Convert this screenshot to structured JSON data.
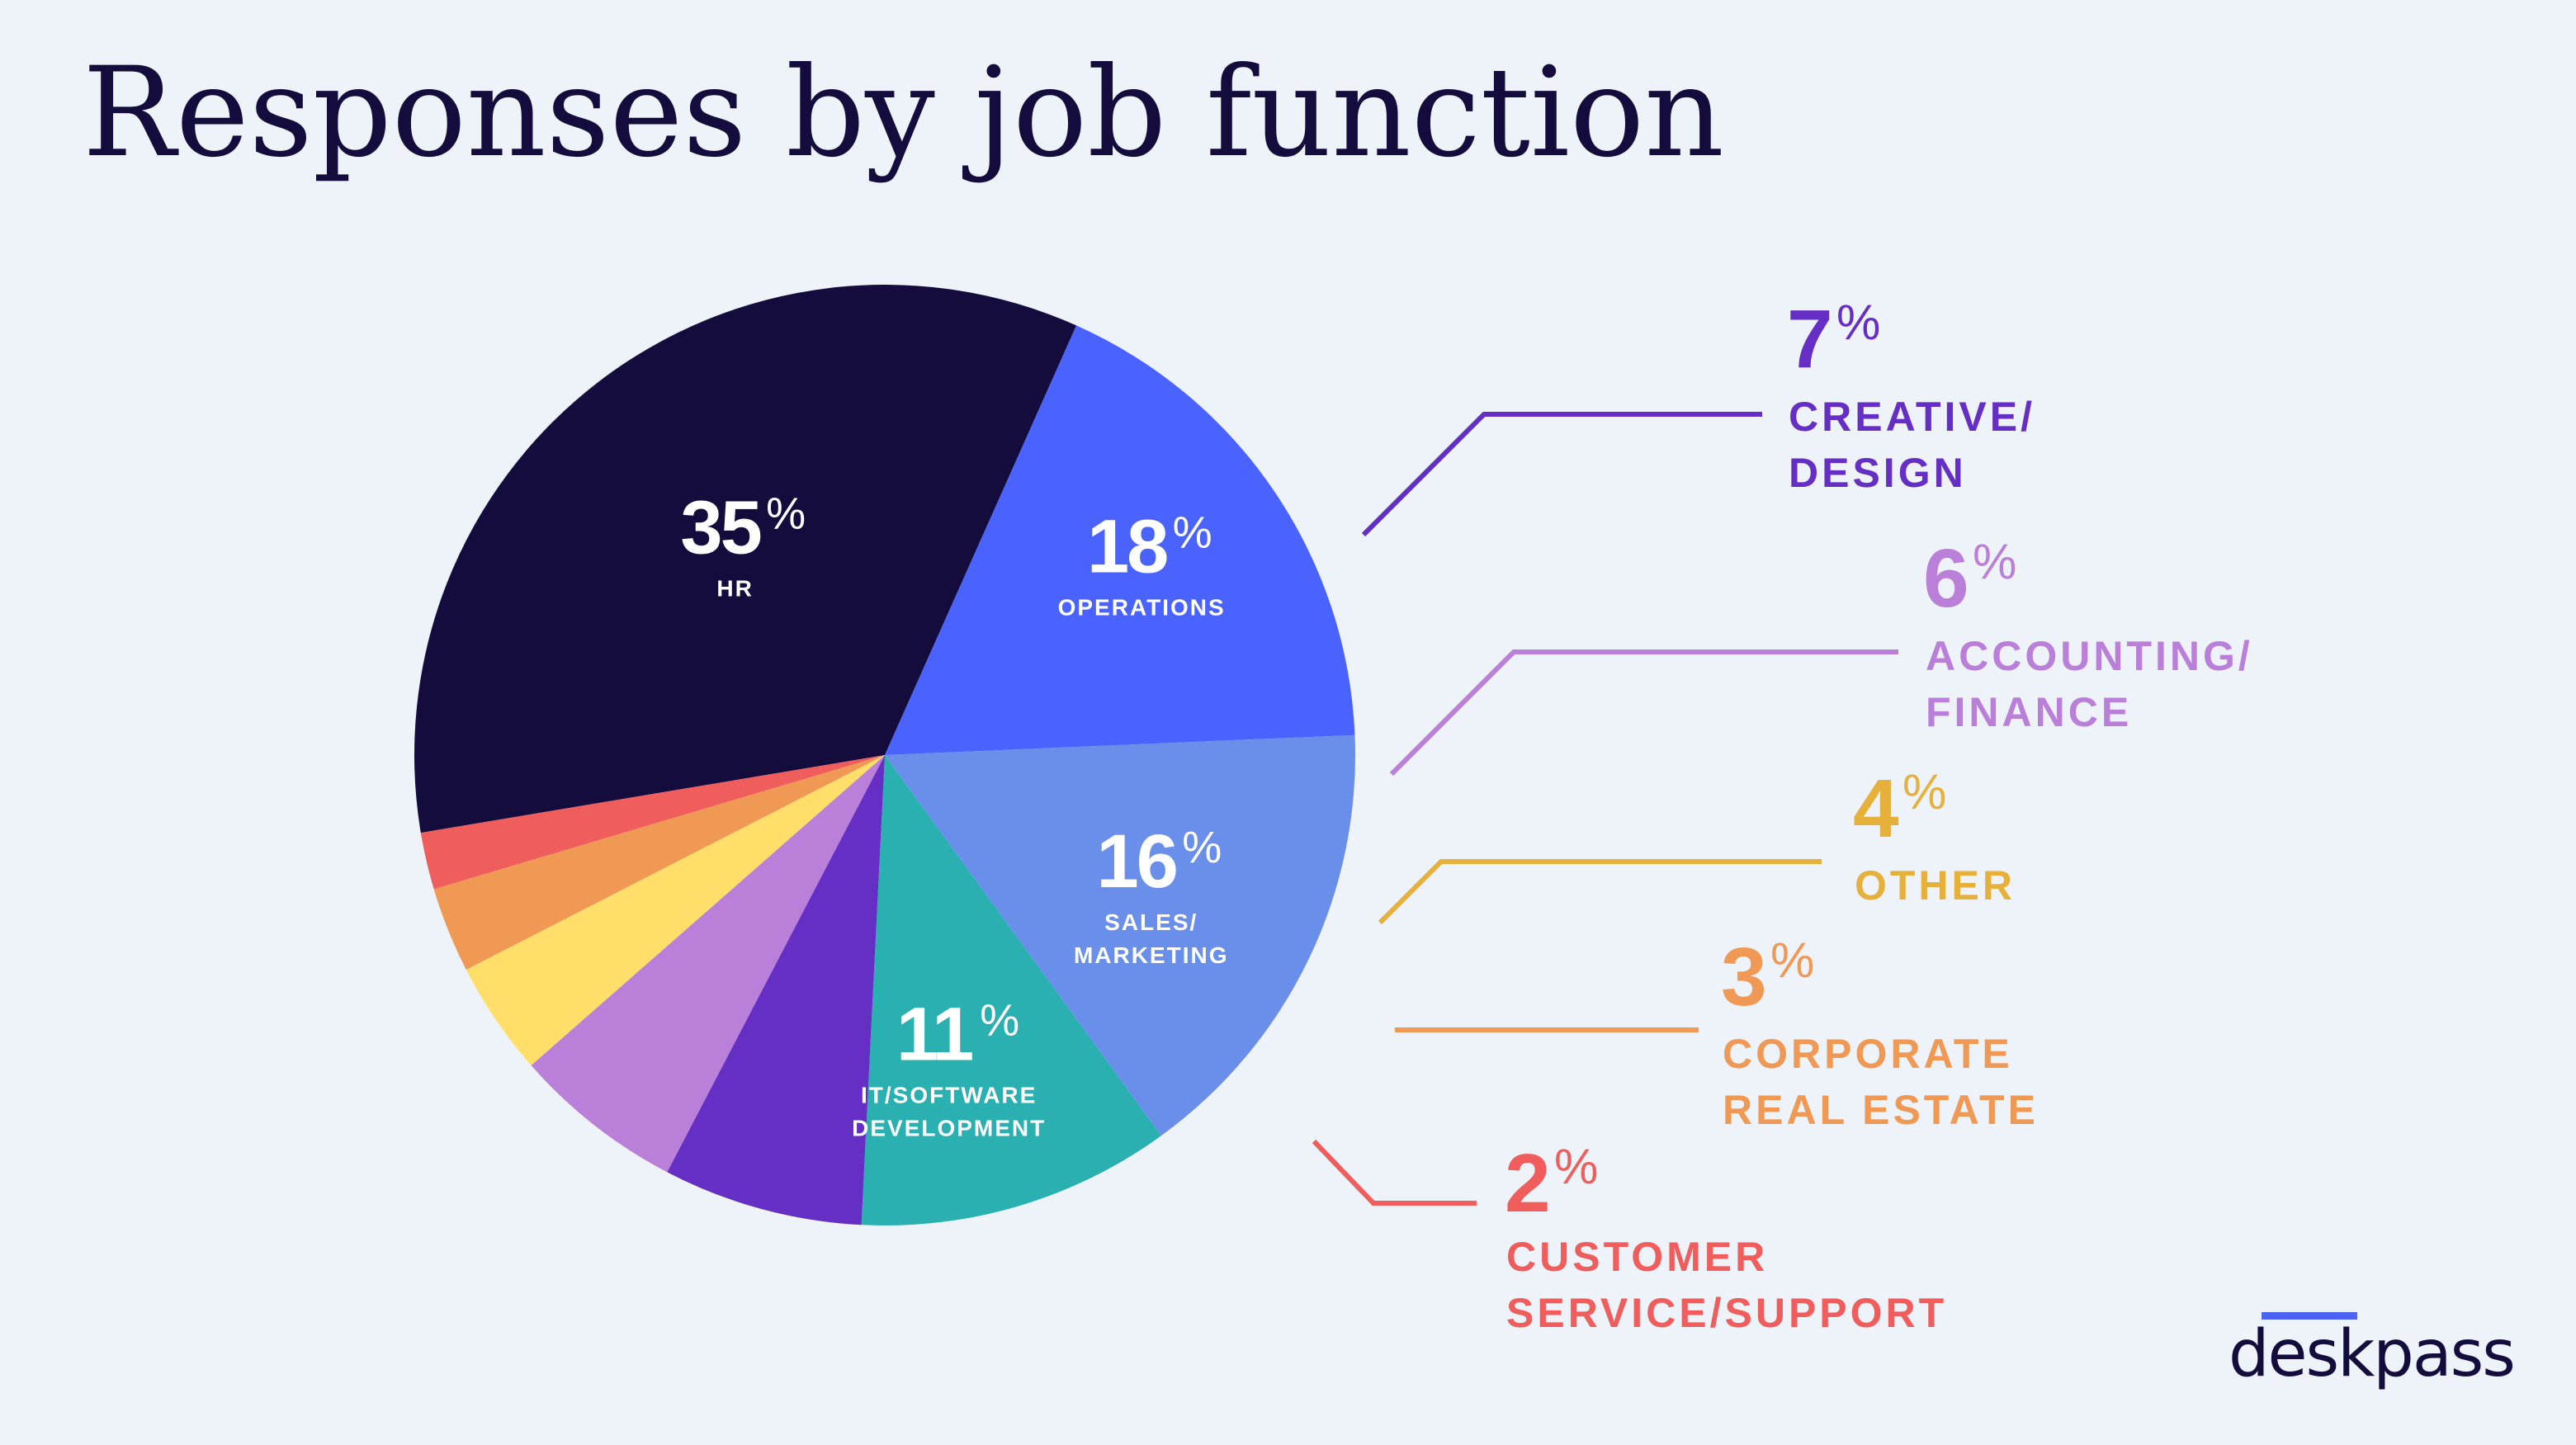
{
  "title": "Responses by job function",
  "brand": "deskpass",
  "colors": {
    "background": "#EEF2F9",
    "title": "#130C3D",
    "brand_accent": "#4A63F5"
  },
  "chart_data": {
    "type": "pie",
    "title": "Responses by job function",
    "unit": "%",
    "slices": [
      {
        "label": "HR",
        "label_lines": [
          "HR"
        ],
        "value": 35,
        "color": "#130C3D",
        "label_placement": "inside"
      },
      {
        "label": "OPERATIONS",
        "label_lines": [
          "OPERATIONS"
        ],
        "value": 18,
        "color": "#4A63FF",
        "label_placement": "inside"
      },
      {
        "label": "SALES/ MARKETING",
        "label_lines": [
          "SALES/",
          "MARKETING"
        ],
        "value": 16,
        "color": "#6A8FEB",
        "label_placement": "inside"
      },
      {
        "label": "IT/SOFTWARE DEVELOPMENT",
        "label_lines": [
          "IT/SOFTWARE",
          "DEVELOPMENT"
        ],
        "value": 11,
        "color": "#2AB0B0",
        "label_placement": "inside"
      },
      {
        "label": "CREATIVE/ DESIGN",
        "label_lines": [
          "CREATIVE/",
          "DESIGN"
        ],
        "value": 7,
        "color": "#652EC4",
        "label_placement": "outside"
      },
      {
        "label": "ACCOUNTING/ FINANCE",
        "label_lines": [
          "ACCOUNTING/",
          "FINANCE"
        ],
        "value": 6,
        "color": "#B97FD9",
        "label_placement": "outside"
      },
      {
        "label": "OTHER",
        "label_lines": [
          "OTHER"
        ],
        "value": 4,
        "color": "#FFDF6A",
        "text_color": "#E6B13B",
        "label_placement": "outside"
      },
      {
        "label": "CORPORATE REAL ESTATE",
        "label_lines": [
          "CORPORATE",
          "REAL ESTATE"
        ],
        "value": 3,
        "color": "#F09955",
        "label_placement": "outside"
      },
      {
        "label": "CUSTOMER SERVICE/SUPPORT",
        "label_lines": [
          "CUSTOMER",
          "SERVICE/SUPPORT"
        ],
        "value": 2,
        "color": "#EF5E5C",
        "label_placement": "outside"
      }
    ]
  }
}
